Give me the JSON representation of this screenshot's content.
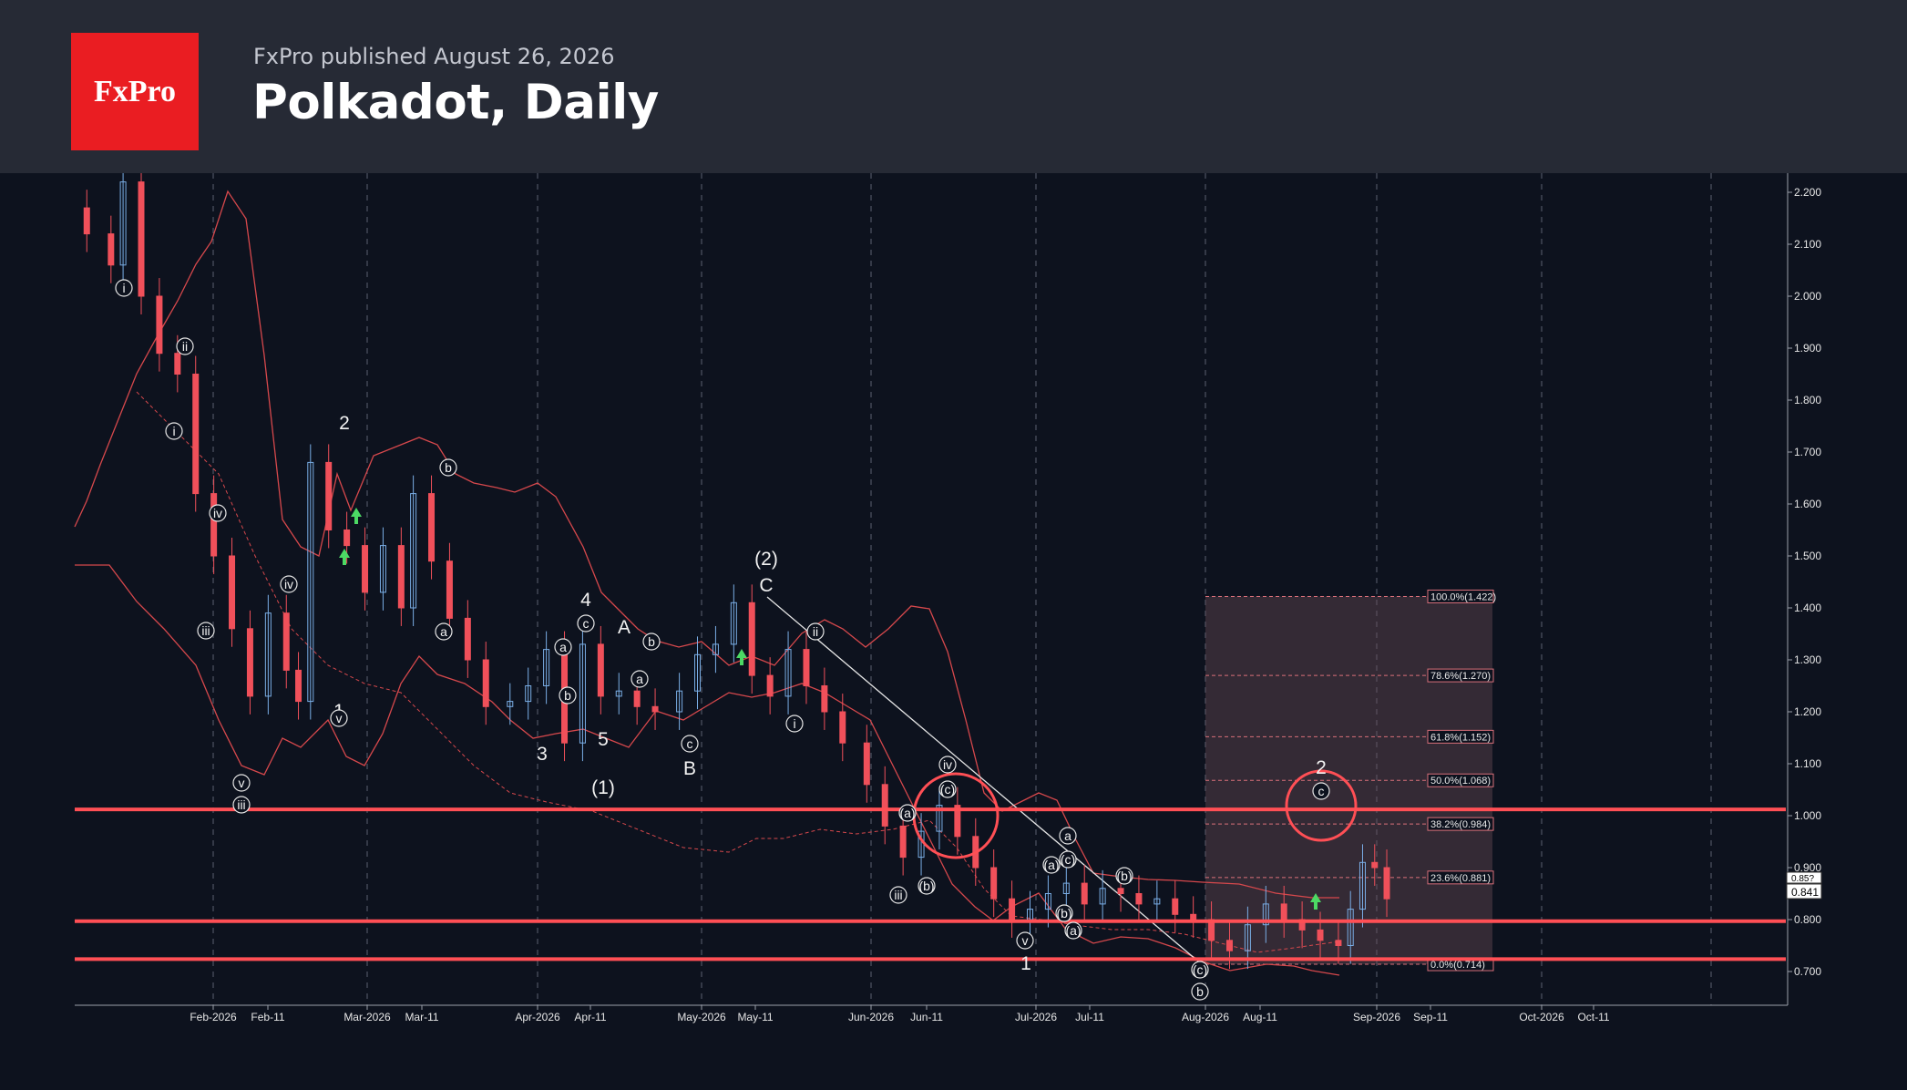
{
  "header": {
    "brand": "FxPro",
    "published": "FxPro published August 26, 2026",
    "title": "Polkadot, Daily"
  },
  "chart_data": {
    "type": "candlestick",
    "title": "Polkadot, Daily",
    "ylim": [
      0.63,
      2.23
    ],
    "y_ticks": [
      2.2,
      2.1,
      2.0,
      1.9,
      1.8,
      1.7,
      1.6,
      1.5,
      1.4,
      1.3,
      1.2,
      1.1,
      1.0,
      0.9,
      0.8,
      0.7
    ],
    "x_ticks": [
      "Feb-2026",
      "Feb-11",
      "Mar-2026",
      "Mar-11",
      "Apr-2026",
      "Apr-11",
      "May-2026",
      "May-11",
      "Jun-2026",
      "Jun-11",
      "Jul-2026",
      "Jul-11",
      "Aug-2026",
      "Aug-11",
      "Sep-2026",
      "Sep-11",
      "Oct-2026",
      "Oct-11"
    ],
    "last_price": "0.841",
    "current_price": "0.85?",
    "support_resistance_levels": [
      1.012,
      0.797,
      0.724
    ],
    "fibonacci": [
      {
        "label": "100.0%(1.422)",
        "value": 1.422
      },
      {
        "label": "78.6%(1.270)",
        "value": 1.27
      },
      {
        "label": "61.8%(1.152)",
        "value": 1.152
      },
      {
        "label": "50.0%(1.068)",
        "value": 1.068
      },
      {
        "label": "38.2%(0.984)",
        "value": 0.984
      },
      {
        "label": "23.6%(0.881)",
        "value": 0.881
      },
      {
        "label": "0.0%(0.714)",
        "value": 0.714
      }
    ],
    "series": [
      {
        "name": "Close (approx.)",
        "points": [
          [
            "2026-01-23",
            2.12
          ],
          [
            "2026-01-27",
            2.06
          ],
          [
            "2026-01-29",
            2.22
          ],
          [
            "2026-02-01",
            2.0
          ],
          [
            "2026-02-04",
            1.89
          ],
          [
            "2026-02-07",
            1.85
          ],
          [
            "2026-02-10",
            1.62
          ],
          [
            "2026-02-13",
            1.5
          ],
          [
            "2026-02-16",
            1.36
          ],
          [
            "2026-02-19",
            1.23
          ],
          [
            "2026-02-22",
            1.39
          ],
          [
            "2026-02-25",
            1.28
          ],
          [
            "2026-02-27",
            1.22
          ],
          [
            "2026-03-01",
            1.68
          ],
          [
            "2026-03-04",
            1.55
          ],
          [
            "2026-03-07",
            1.52
          ],
          [
            "2026-03-10",
            1.43
          ],
          [
            "2026-03-13",
            1.52
          ],
          [
            "2026-03-16",
            1.4
          ],
          [
            "2026-03-18",
            1.62
          ],
          [
            "2026-03-21",
            1.49
          ],
          [
            "2026-03-24",
            1.38
          ],
          [
            "2026-03-27",
            1.3
          ],
          [
            "2026-03-30",
            1.21
          ],
          [
            "2026-04-03",
            1.22
          ],
          [
            "2026-04-06",
            1.25
          ],
          [
            "2026-04-09",
            1.32
          ],
          [
            "2026-04-12",
            1.14
          ],
          [
            "2026-04-15",
            1.33
          ],
          [
            "2026-04-18",
            1.23
          ],
          [
            "2026-04-21",
            1.24
          ],
          [
            "2026-04-24",
            1.21
          ],
          [
            "2026-04-27",
            1.2
          ],
          [
            "2026-05-01",
            1.24
          ],
          [
            "2026-05-04",
            1.31
          ],
          [
            "2026-05-07",
            1.33
          ],
          [
            "2026-05-10",
            1.41
          ],
          [
            "2026-05-13",
            1.27
          ],
          [
            "2026-05-16",
            1.23
          ],
          [
            "2026-05-19",
            1.32
          ],
          [
            "2026-05-22",
            1.25
          ],
          [
            "2026-05-25",
            1.2
          ],
          [
            "2026-05-28",
            1.14
          ],
          [
            "2026-06-01",
            1.06
          ],
          [
            "2026-06-04",
            0.98
          ],
          [
            "2026-06-07",
            0.92
          ],
          [
            "2026-06-10",
            0.97
          ],
          [
            "2026-06-13",
            1.02
          ],
          [
            "2026-06-16",
            0.96
          ],
          [
            "2026-06-19",
            0.9
          ],
          [
            "2026-06-22",
            0.84
          ],
          [
            "2026-06-25",
            0.8
          ],
          [
            "2026-06-28",
            0.82
          ],
          [
            "2026-07-01",
            0.85
          ],
          [
            "2026-07-04",
            0.87
          ],
          [
            "2026-07-07",
            0.83
          ],
          [
            "2026-07-10",
            0.86
          ],
          [
            "2026-07-13",
            0.85
          ],
          [
            "2026-07-16",
            0.83
          ],
          [
            "2026-07-19",
            0.84
          ],
          [
            "2026-07-22",
            0.81
          ],
          [
            "2026-07-25",
            0.8
          ],
          [
            "2026-07-28",
            0.76
          ],
          [
            "2026-07-31",
            0.74
          ],
          [
            "2026-08-03",
            0.79
          ],
          [
            "2026-08-06",
            0.83
          ],
          [
            "2026-08-09",
            0.8
          ],
          [
            "2026-08-12",
            0.78
          ],
          [
            "2026-08-15",
            0.76
          ],
          [
            "2026-08-18",
            0.75
          ],
          [
            "2026-08-20",
            0.82
          ],
          [
            "2026-08-22",
            0.91
          ],
          [
            "2026-08-24",
            0.9
          ],
          [
            "2026-08-26",
            0.84
          ]
        ]
      }
    ],
    "wave_labels": [
      "i",
      "ii",
      "i",
      "iv",
      "iii",
      "iv",
      "v",
      "iii",
      "2",
      "1",
      "v",
      "b",
      "a",
      "4",
      "c",
      "3",
      "a",
      "b",
      "5",
      "(1)",
      "A",
      "b",
      "a",
      "c",
      "B",
      "(2)",
      "C",
      "ii",
      "i",
      "iv",
      "(c)",
      "(a)",
      "(b)",
      "iii",
      "a",
      "(c)",
      "(a)",
      "(b)",
      "(a)",
      "v",
      "1",
      "(b)",
      "(c)",
      "b",
      "2",
      "c"
    ]
  }
}
